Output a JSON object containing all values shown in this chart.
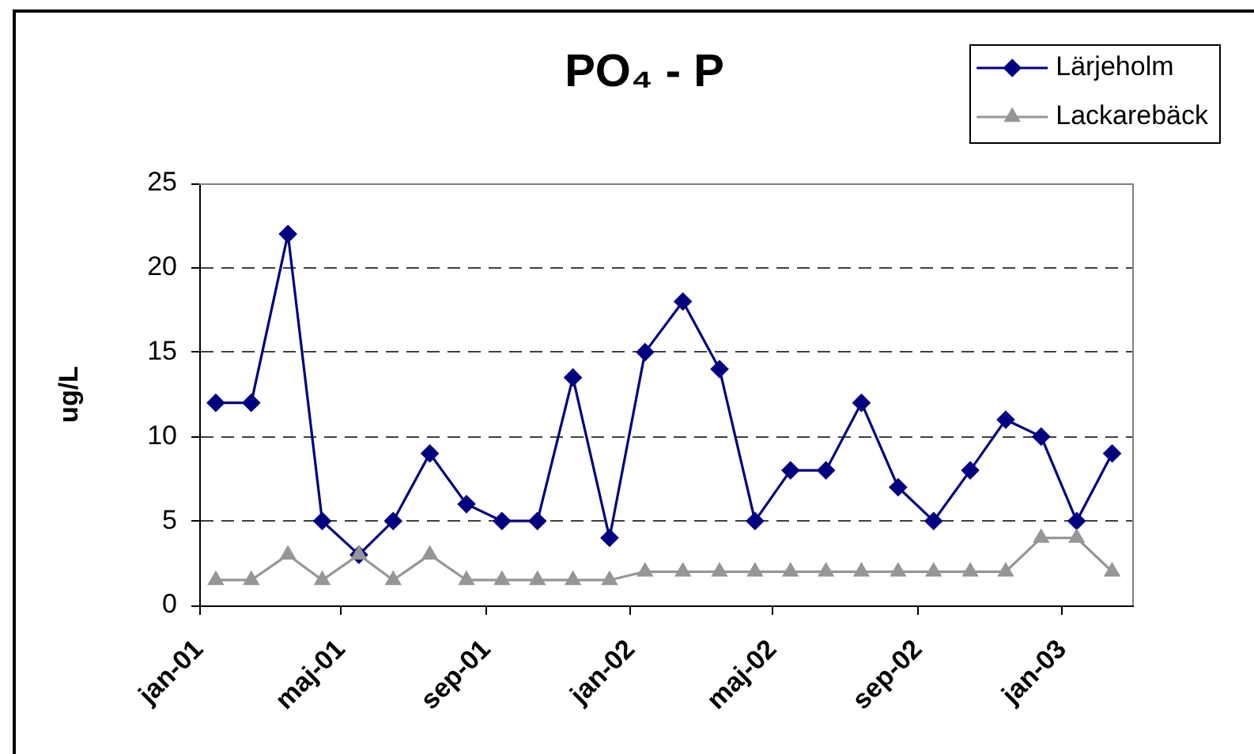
{
  "chart_data": {
    "type": "line",
    "title": "PO₄ - P",
    "ylabel": "ug/L",
    "x": [
      "2001-01-15",
      "2001-02-14",
      "2001-03-17",
      "2001-04-15",
      "2001-05-16",
      "2001-06-14",
      "2001-07-15",
      "2001-08-15",
      "2001-09-14",
      "2001-10-14",
      "2001-11-13",
      "2001-12-14",
      "2002-01-13",
      "2002-02-14",
      "2002-03-17",
      "2002-04-16",
      "2002-05-16",
      "2002-06-15",
      "2002-07-15",
      "2002-08-15",
      "2002-09-14",
      "2002-10-15",
      "2002-11-14",
      "2002-12-14",
      "2003-01-13",
      "2003-02-12"
    ],
    "series": [
      {
        "name": "Lärjeholm",
        "color": "#000080",
        "marker": "diamond",
        "values": [
          12,
          12,
          22,
          5,
          3,
          5,
          9,
          6,
          5,
          5,
          13.5,
          4,
          15,
          18,
          14,
          5,
          8,
          8,
          12,
          7,
          5,
          8,
          11,
          10,
          5,
          9
        ]
      },
      {
        "name": "Lackarebäck",
        "color": "#969696",
        "marker": "triangle",
        "values": [
          1.5,
          1.5,
          3,
          1.5,
          3,
          1.5,
          3,
          1.5,
          1.5,
          1.5,
          1.5,
          1.5,
          2,
          2,
          2,
          2,
          2,
          2,
          2,
          2,
          2,
          2,
          2,
          4,
          4,
          2
        ]
      }
    ],
    "xlim": [
      "2001-01-01",
      "2003-03-01"
    ],
    "xticks": [
      {
        "value": "2001-01-01",
        "label": "jan-01"
      },
      {
        "value": "2001-05-01",
        "label": "maj-01"
      },
      {
        "value": "2001-09-01",
        "label": "sep-01"
      },
      {
        "value": "2002-01-01",
        "label": "jan-02"
      },
      {
        "value": "2002-05-01",
        "label": "maj-02"
      },
      {
        "value": "2002-09-01",
        "label": "sep-02"
      },
      {
        "value": "2003-01-01",
        "label": "jan-03"
      }
    ],
    "ylim": [
      0,
      25
    ],
    "yticks": [
      0,
      5,
      10,
      15,
      20,
      25
    ],
    "grid": "y",
    "legend": "top right",
    "line_style": "solid"
  }
}
